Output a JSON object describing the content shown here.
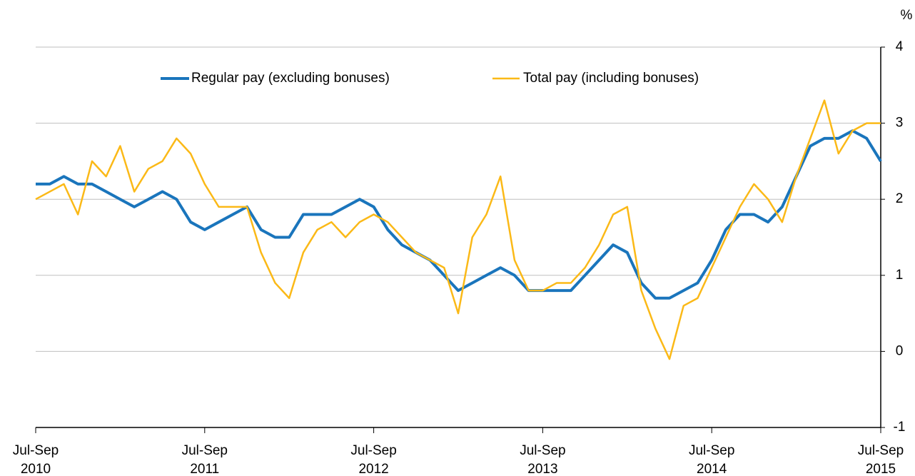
{
  "chart_data": {
    "type": "line",
    "y_label": "%",
    "categories": [
      "Jul-Sep 2010",
      null,
      null,
      null,
      null,
      null,
      null,
      null,
      null,
      null,
      null,
      null,
      "Jul-Sep 2011",
      null,
      null,
      null,
      null,
      null,
      null,
      null,
      null,
      null,
      null,
      null,
      "Jul-Sep 2012",
      null,
      null,
      null,
      null,
      null,
      null,
      null,
      null,
      null,
      null,
      null,
      "Jul-Sep 2013",
      null,
      null,
      null,
      null,
      null,
      null,
      null,
      null,
      null,
      null,
      null,
      "Jul-Sep 2014",
      null,
      null,
      null,
      null,
      null,
      null,
      null,
      null,
      null,
      null,
      null,
      "Jul-Sep 2015"
    ],
    "series": [
      {
        "name": "Regular pay (excluding bonuses)",
        "color": "#1a75bc",
        "width": 4,
        "values": [
          2.2,
          2.2,
          2.3,
          2.2,
          2.2,
          2.1,
          2.0,
          1.9,
          2.0,
          2.1,
          2.0,
          1.7,
          1.6,
          1.7,
          1.8,
          1.9,
          1.6,
          1.5,
          1.5,
          1.8,
          1.8,
          1.8,
          1.9,
          2.0,
          1.9,
          1.6,
          1.4,
          1.3,
          1.2,
          1.0,
          0.8,
          0.9,
          1.0,
          1.1,
          1.0,
          0.8,
          0.8,
          0.8,
          0.8,
          1.0,
          1.2,
          1.4,
          1.3,
          0.9,
          0.7,
          0.7,
          0.8,
          0.9,
          1.2,
          1.6,
          1.8,
          1.8,
          1.7,
          1.9,
          2.3,
          2.7,
          2.8,
          2.8,
          2.9,
          2.8,
          2.5
        ]
      },
      {
        "name": "Total pay (including bonuses)",
        "color": "#fbb917",
        "width": 2.5,
        "values": [
          2.0,
          2.1,
          2.2,
          1.8,
          2.5,
          2.3,
          2.7,
          2.1,
          2.4,
          2.5,
          2.8,
          2.6,
          2.2,
          1.9,
          1.9,
          1.9,
          1.3,
          0.9,
          0.7,
          1.3,
          1.6,
          1.7,
          1.5,
          1.7,
          1.8,
          1.7,
          1.5,
          1.3,
          1.2,
          1.1,
          0.5,
          1.5,
          1.8,
          2.3,
          1.2,
          0.8,
          0.8,
          0.9,
          0.9,
          1.1,
          1.4,
          1.8,
          1.9,
          0.8,
          0.3,
          -0.1,
          0.6,
          0.7,
          1.1,
          1.5,
          1.9,
          2.2,
          2.0,
          1.7,
          2.3,
          2.8,
          3.3,
          2.6,
          2.9,
          3.0,
          3.0
        ]
      }
    ],
    "ylim": [
      -1,
      4
    ],
    "yticks": [
      4,
      3,
      2,
      1,
      0,
      -1
    ],
    "grid": true,
    "legend": "top"
  }
}
